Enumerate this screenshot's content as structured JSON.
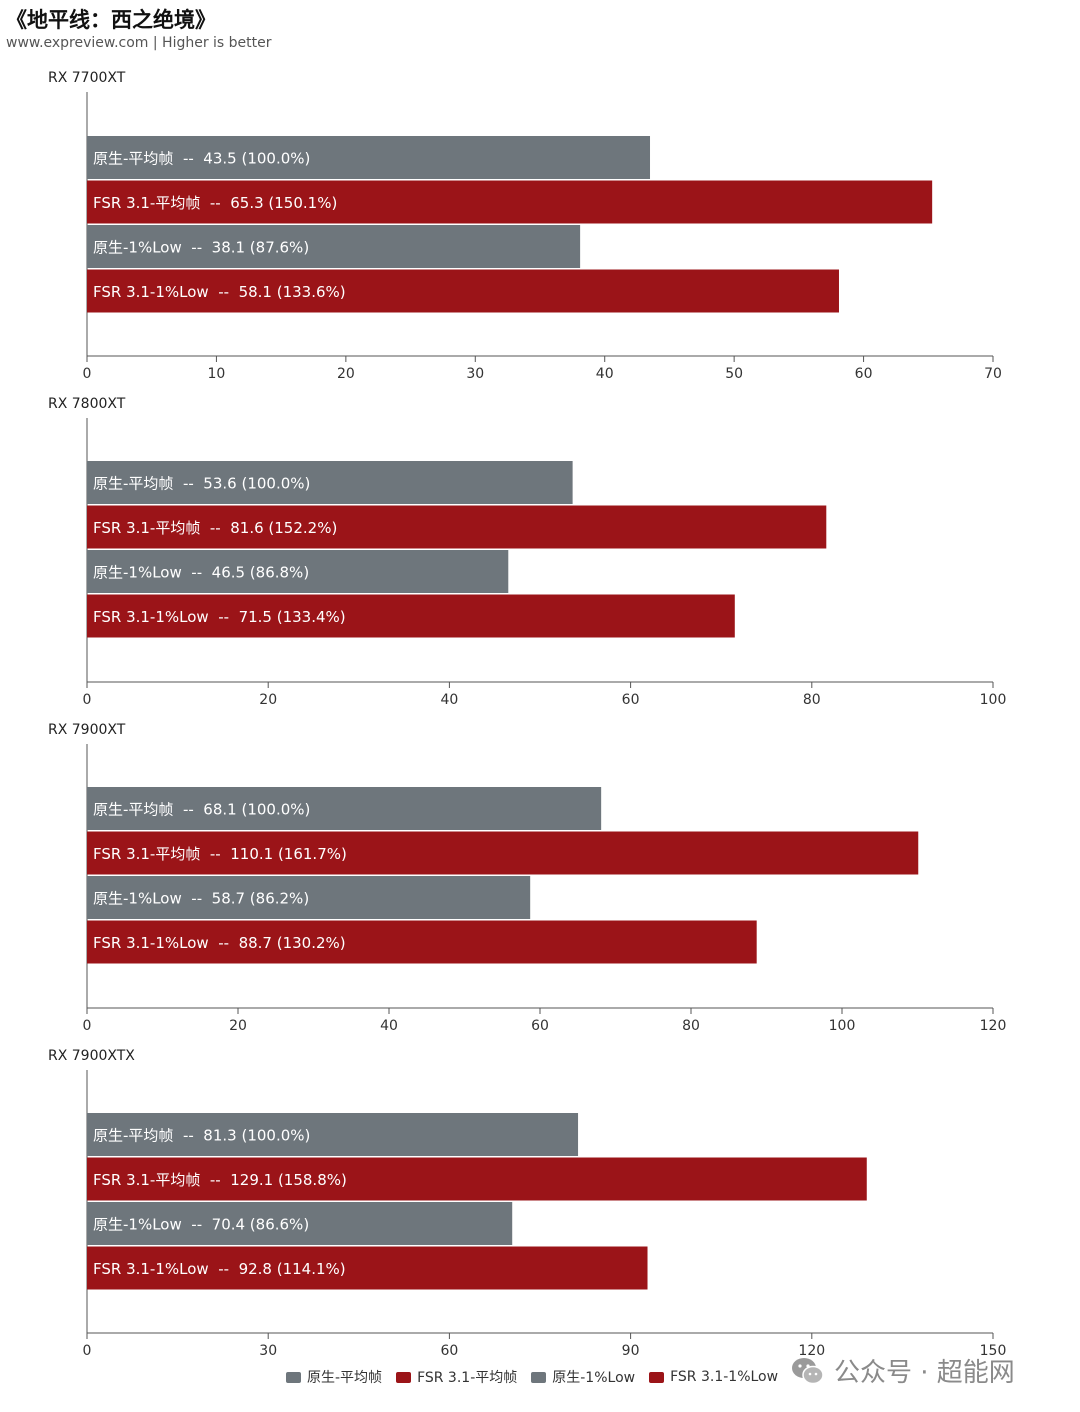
{
  "header": {
    "title": "《地平线：西之绝境》",
    "subtitle": "www.expreview.com | Higher is better"
  },
  "colors": {
    "native": "#6e767c",
    "fsr": "#9b1418",
    "axis": "#555555"
  },
  "chart_data": [
    {
      "type": "bar",
      "orientation": "horizontal",
      "title": "RX 7700XT",
      "series": [
        {
          "name": "原生-平均帧",
          "value": 43.5,
          "label": "原生-平均帧  --  43.5 (100.0%)"
        },
        {
          "name": "FSR 3.1-平均帧",
          "value": 65.3,
          "label": "FSR 3.1-平均帧  --  65.3 (150.1%)"
        },
        {
          "name": "原生-1%Low",
          "value": 38.1,
          "label": "原生-1%Low  --  38.1 (87.6%)"
        },
        {
          "name": "FSR 3.1-1%Low",
          "value": 58.1,
          "label": "FSR 3.1-1%Low  --  58.1 (133.6%)"
        }
      ],
      "xlim": [
        0,
        70
      ],
      "ticks": [
        "0",
        "10",
        "20",
        "30",
        "40",
        "50",
        "60",
        "70"
      ]
    },
    {
      "type": "bar",
      "orientation": "horizontal",
      "title": "RX 7800XT",
      "series": [
        {
          "name": "原生-平均帧",
          "value": 53.6,
          "label": "原生-平均帧  --  53.6 (100.0%)"
        },
        {
          "name": "FSR 3.1-平均帧",
          "value": 81.6,
          "label": "FSR 3.1-平均帧  --  81.6 (152.2%)"
        },
        {
          "name": "原生-1%Low",
          "value": 46.5,
          "label": "原生-1%Low  --  46.5 (86.8%)"
        },
        {
          "name": "FSR 3.1-1%Low",
          "value": 71.5,
          "label": "FSR 3.1-1%Low  --  71.5 (133.4%)"
        }
      ],
      "xlim": [
        0,
        100
      ],
      "ticks": [
        "0",
        "20",
        "40",
        "60",
        "80",
        "100"
      ]
    },
    {
      "type": "bar",
      "orientation": "horizontal",
      "title": "RX 7900XT",
      "series": [
        {
          "name": "原生-平均帧",
          "value": 68.1,
          "label": "原生-平均帧  --  68.1 (100.0%)"
        },
        {
          "name": "FSR 3.1-平均帧",
          "value": 110.1,
          "label": "FSR 3.1-平均帧  --  110.1 (161.7%)"
        },
        {
          "name": "原生-1%Low",
          "value": 58.7,
          "label": "原生-1%Low  --  58.7 (86.2%)"
        },
        {
          "name": "FSR 3.1-1%Low",
          "value": 88.7,
          "label": "FSR 3.1-1%Low  --  88.7 (130.2%)"
        }
      ],
      "xlim": [
        0,
        120
      ],
      "ticks": [
        "0",
        "20",
        "40",
        "60",
        "80",
        "100",
        "120"
      ]
    },
    {
      "type": "bar",
      "orientation": "horizontal",
      "title": "RX 7900XTX",
      "series": [
        {
          "name": "原生-平均帧",
          "value": 81.3,
          "label": "原生-平均帧  --  81.3 (100.0%)"
        },
        {
          "name": "FSR 3.1-平均帧",
          "value": 129.1,
          "label": "FSR 3.1-平均帧  --  129.1 (158.8%)"
        },
        {
          "name": "原生-1%Low",
          "value": 70.4,
          "label": "原生-1%Low  --  70.4 (86.6%)"
        },
        {
          "name": "FSR 3.1-1%Low",
          "value": 92.8,
          "label": "FSR 3.1-1%Low  --  92.8 (114.1%)"
        }
      ],
      "xlim": [
        0,
        150
      ],
      "ticks": [
        "0",
        "30",
        "60",
        "90",
        "120",
        "150"
      ]
    }
  ],
  "legend": [
    {
      "label": "原生-平均帧",
      "color": "#6e767c"
    },
    {
      "label": "FSR 3.1-平均帧",
      "color": "#9b1418"
    },
    {
      "label": "原生-1%Low",
      "color": "#6e767c"
    },
    {
      "label": "FSR 3.1-1%Low",
      "color": "#9b1418"
    }
  ],
  "watermark": {
    "text": "公众号 · 超能网",
    "icon": "wechat-icon"
  }
}
